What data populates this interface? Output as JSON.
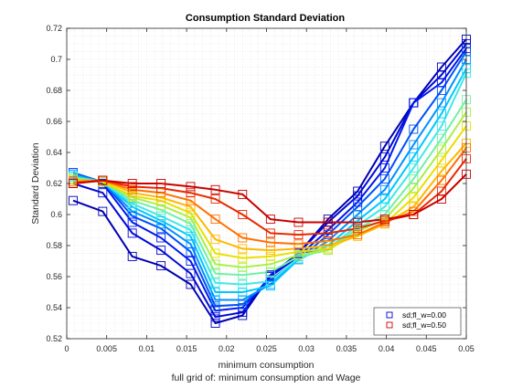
{
  "chart_data": {
    "type": "line",
    "title": "Consumption Standard Deviation",
    "xlabel": "minimum consumption",
    "ylabel": "Standard Deviation",
    "subtitle": "full grid of: minimum consumption and Wage",
    "xlim": [
      0,
      0.05
    ],
    "ylim": [
      0.52,
      0.72
    ],
    "xticks": [
      0,
      0.005,
      0.01,
      0.015,
      0.02,
      0.025,
      0.03,
      0.035,
      0.04,
      0.045,
      0.05
    ],
    "xtick_labels": [
      "0",
      "0.005",
      "0.01",
      "0.015",
      "0.02",
      "0.025",
      "0.03",
      "0.035",
      "0.04",
      "0.045",
      "0.05"
    ],
    "yticks": [
      0.52,
      0.54,
      0.56,
      0.58,
      0.6,
      0.62,
      0.64,
      0.66,
      0.68,
      0.7,
      0.72
    ],
    "ytick_labels": [
      "0.52",
      "0.54",
      "0.56",
      "0.58",
      "0.6",
      "0.62",
      "0.64",
      "0.66",
      "0.68",
      "0.7",
      "0.72"
    ],
    "grid": "minor dotted",
    "marker": "square",
    "legend": {
      "position": "bottom-right",
      "entries": [
        {
          "label": "sd;fl_w=0.00",
          "color": "#0000cc"
        },
        {
          "label": "sd;fl_w=0.50",
          "color": "#cc0000"
        }
      ]
    },
    "x": [
      0.0008,
      0.0045,
      0.0082,
      0.0118,
      0.0155,
      0.0186,
      0.022,
      0.0255,
      0.029,
      0.0327,
      0.0364,
      0.0398,
      0.0434,
      0.0469,
      0.05
    ],
    "series": [
      {
        "color": "#0000b4",
        "values": [
          0.609,
          0.602,
          0.573,
          0.567,
          0.555,
          0.53,
          0.535,
          0.561,
          0.575,
          0.597,
          0.615,
          0.644,
          0.672,
          0.695,
          0.713
        ]
      },
      {
        "color": "#0008d4",
        "values": [
          0.62,
          0.614,
          0.588,
          0.577,
          0.562,
          0.534,
          0.537,
          0.561,
          0.575,
          0.595,
          0.612,
          0.637,
          0.672,
          0.69,
          0.71
        ]
      },
      {
        "color": "#0018ec",
        "values": [
          0.627,
          0.62,
          0.595,
          0.585,
          0.57,
          0.538,
          0.54,
          0.56,
          0.573,
          0.59,
          0.608,
          0.63,
          0.672,
          0.685,
          0.707
        ]
      },
      {
        "color": "#0050f8",
        "values": [
          0.627,
          0.621,
          0.599,
          0.591,
          0.576,
          0.541,
          0.542,
          0.558,
          0.571,
          0.587,
          0.605,
          0.623,
          0.655,
          0.68,
          0.705
        ]
      },
      {
        "color": "#0090ff",
        "values": [
          0.626,
          0.621,
          0.602,
          0.594,
          0.581,
          0.545,
          0.545,
          0.555,
          0.571,
          0.583,
          0.6,
          0.616,
          0.645,
          0.672,
          0.7
        ]
      },
      {
        "color": "#00c8ff",
        "values": [
          0.625,
          0.621,
          0.605,
          0.596,
          0.586,
          0.55,
          0.55,
          0.554,
          0.571,
          0.58,
          0.596,
          0.61,
          0.637,
          0.665,
          0.694
        ]
      },
      {
        "color": "#40e8e8",
        "values": [
          0.624,
          0.621,
          0.607,
          0.599,
          0.59,
          0.556,
          0.555,
          0.557,
          0.572,
          0.578,
          0.593,
          0.605,
          0.63,
          0.657,
          0.691
        ]
      },
      {
        "color": "#70f0a8",
        "values": [
          0.624,
          0.621,
          0.609,
          0.603,
          0.594,
          0.562,
          0.561,
          0.563,
          0.573,
          0.577,
          0.591,
          0.6,
          0.623,
          0.649,
          0.674
        ]
      },
      {
        "color": "#a8f048",
        "values": [
          0.623,
          0.621,
          0.611,
          0.606,
          0.598,
          0.568,
          0.566,
          0.568,
          0.574,
          0.577,
          0.589,
          0.597,
          0.617,
          0.642,
          0.666
        ]
      },
      {
        "color": "#e8e000",
        "values": [
          0.622,
          0.621,
          0.612,
          0.609,
          0.601,
          0.575,
          0.572,
          0.573,
          0.576,
          0.578,
          0.587,
          0.594,
          0.611,
          0.635,
          0.657
        ]
      },
      {
        "color": "#ffb800",
        "values": [
          0.622,
          0.622,
          0.614,
          0.611,
          0.605,
          0.584,
          0.578,
          0.577,
          0.578,
          0.58,
          0.586,
          0.594,
          0.605,
          0.628,
          0.646
        ]
      },
      {
        "color": "#ff7000",
        "values": [
          0.621,
          0.622,
          0.616,
          0.614,
          0.609,
          0.597,
          0.585,
          0.582,
          0.581,
          0.583,
          0.587,
          0.595,
          0.602,
          0.622,
          0.643
        ]
      },
      {
        "color": "#e82800",
        "values": [
          0.62,
          0.622,
          0.618,
          0.617,
          0.614,
          0.61,
          0.6,
          0.588,
          0.587,
          0.588,
          0.591,
          0.596,
          0.6,
          0.615,
          0.636
        ]
      },
      {
        "color": "#c80000",
        "values": [
          0.62,
          0.622,
          0.62,
          0.62,
          0.618,
          0.616,
          0.613,
          0.597,
          0.595,
          0.595,
          0.595,
          0.597,
          0.6,
          0.61,
          0.626
        ]
      }
    ]
  }
}
